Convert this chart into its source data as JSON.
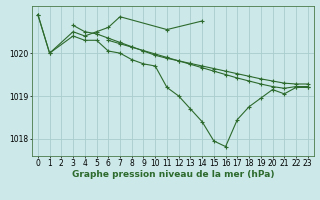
{
  "xlabel": "Graphe pression niveau de la mer (hPa)",
  "bg_color": "#cce8e8",
  "grid_color": "#aacccc",
  "line_color": "#2d6a2d",
  "marker": "+",
  "markersize": 3.5,
  "linewidth": 0.8,
  "ylim": [
    1017.6,
    1021.1
  ],
  "yticks": [
    1018,
    1019,
    1020
  ],
  "xlim": [
    -0.5,
    23.5
  ],
  "xticks": [
    0,
    1,
    2,
    3,
    4,
    5,
    6,
    7,
    8,
    9,
    10,
    11,
    12,
    13,
    14,
    15,
    16,
    17,
    18,
    19,
    20,
    21,
    22,
    23
  ],
  "series": [
    [
      1020.9,
      1020.0,
      null,
      1020.5,
      1020.4,
      1020.5,
      1020.6,
      1020.85,
      null,
      null,
      null,
      1020.55,
      null,
      null,
      1020.75,
      null,
      null,
      null,
      null,
      null,
      null,
      null,
      null,
      null
    ],
    [
      null,
      null,
      null,
      1020.65,
      1020.5,
      1020.45,
      1020.35,
      1020.25,
      1020.15,
      1020.05,
      1019.95,
      1019.88,
      1019.82,
      1019.76,
      1019.7,
      1019.64,
      1019.58,
      1019.52,
      1019.46,
      1019.4,
      1019.35,
      1019.3,
      1019.28,
      1019.28
    ],
    [
      null,
      null,
      null,
      null,
      null,
      null,
      1020.3,
      1020.22,
      1020.14,
      1020.06,
      1019.98,
      1019.9,
      1019.82,
      1019.74,
      1019.66,
      1019.58,
      1019.5,
      1019.42,
      1019.35,
      1019.28,
      1019.22,
      1019.18,
      1019.22,
      1019.22
    ],
    [
      1020.9,
      1020.0,
      null,
      1020.4,
      1020.3,
      1020.3,
      1020.05,
      1020.0,
      1019.85,
      1019.75,
      1019.7,
      1019.2,
      1019.0,
      1018.7,
      1018.4,
      1017.95,
      1017.82,
      1018.45,
      1018.75,
      1018.95,
      1019.15,
      1019.05,
      1019.2,
      1019.2
    ]
  ],
  "tick_fontsize": 5.5,
  "label_fontsize": 6.5,
  "figsize": [
    3.2,
    2.0
  ],
  "dpi": 100
}
